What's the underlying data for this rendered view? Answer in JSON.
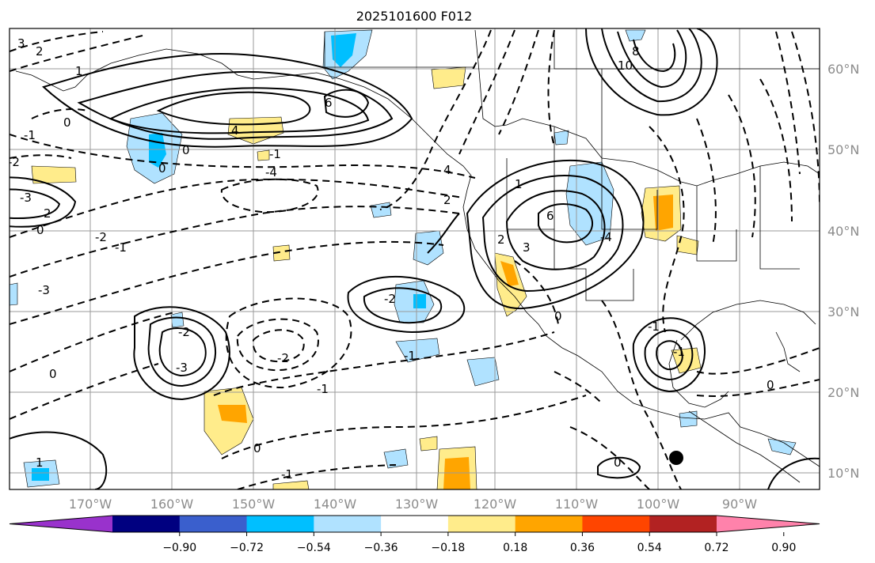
{
  "title": "2025101600 F012",
  "lon_labels": [
    "170°W",
    "160°W",
    "150°W",
    "140°W",
    "130°W",
    "120°W",
    "110°W",
    "100°W",
    "90°W"
  ],
  "lat_labels": [
    "60°N",
    "50°N",
    "40°N",
    "30°N",
    "20°N",
    "10°N"
  ],
  "colorbar": {
    "ticks": [
      "−0.90",
      "−0.72",
      "−0.54",
      "−0.36",
      "−0.18",
      "0.18",
      "0.36",
      "0.54",
      "0.72",
      "0.90"
    ],
    "colors": [
      "#9932cc",
      "#000080",
      "#3a5fcd",
      "#00bfff",
      "#b0e2ff",
      "#ffffff",
      "#ffec8b",
      "#ffa500",
      "#ff4500",
      "#b22222",
      "#ff82ab"
    ]
  },
  "contour_labels": [
    "3",
    "2",
    "1",
    "0",
    "-1",
    "-2",
    "-3",
    "-4",
    "4",
    "6",
    "8",
    "10",
    "2",
    "0",
    "-2",
    "-1",
    "-3",
    "-1",
    "0",
    "-2",
    "-1",
    "2",
    "4",
    "6",
    "3",
    "2",
    "1",
    "0",
    "-1",
    "-4",
    "0",
    "0",
    "1",
    "-3",
    "-2",
    "-1",
    "0",
    "0",
    "-1",
    "-2",
    "-1",
    "0"
  ],
  "marker": "black-dot"
}
